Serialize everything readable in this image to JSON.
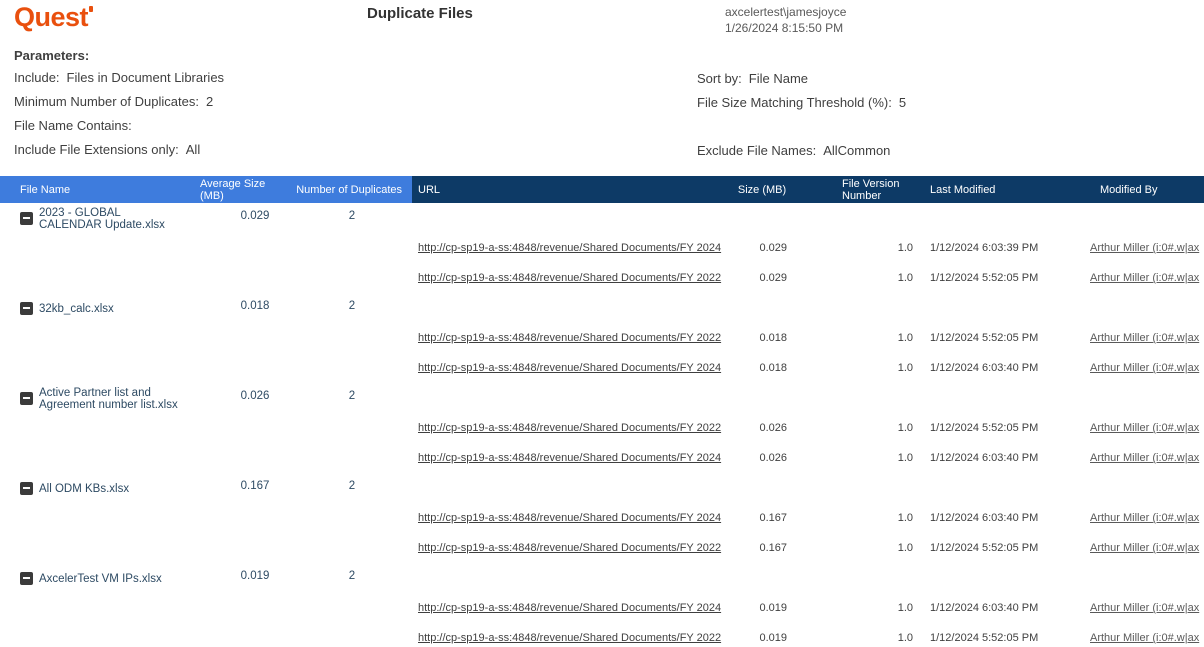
{
  "brand": {
    "logo_text": "Quest"
  },
  "header": {
    "title": "Duplicate Files",
    "user": "axcelertest\\jamesjoyce",
    "generated": "1/26/2024 8:15:50 PM"
  },
  "parameters": {
    "heading": "Parameters:",
    "left": [
      {
        "label": "Include:",
        "value": "Files in Document Libraries"
      },
      {
        "label": "Minimum Number of Duplicates:",
        "value": "2"
      },
      {
        "label": "File Name Contains:",
        "value": ""
      },
      {
        "label": "Include File Extensions only:",
        "value": "All"
      }
    ],
    "right": [
      {
        "label": "Sort by:",
        "value": "File Name"
      },
      {
        "label": "File Size Matching Threshold (%):",
        "value": "5"
      },
      {
        "label": "",
        "value": ""
      },
      {
        "label": "Exclude File Names:",
        "value": "AllCommon"
      }
    ]
  },
  "table": {
    "columns": {
      "file_name": "File Name",
      "avg_size": "Average Size (MB)",
      "duplicates": "Number of Duplicates",
      "url": "URL",
      "size": "Size (MB)",
      "version": "File Version Number",
      "modified": "Last Modified",
      "modified_by": "Modified By"
    },
    "groups": [
      {
        "file_name": "2023 - GLOBAL CALENDAR Update.xlsx",
        "avg_size": "0.029",
        "duplicates": "2",
        "rows": [
          {
            "url": "http://cp-sp19-a-ss:4848/revenue/Shared Documents/FY 2024",
            "size": "0.029",
            "version": "1.0",
            "modified": "1/12/2024 6:03:39 PM",
            "modified_by": "Arthur Miller (i:0#.w|ax"
          },
          {
            "url": "http://cp-sp19-a-ss:4848/revenue/Shared Documents/FY 2022",
            "size": "0.029",
            "version": "1.0",
            "modified": "1/12/2024 5:52:05 PM",
            "modified_by": "Arthur Miller (i:0#.w|ax"
          }
        ]
      },
      {
        "file_name": "32kb_calc.xlsx",
        "avg_size": "0.018",
        "duplicates": "2",
        "rows": [
          {
            "url": "http://cp-sp19-a-ss:4848/revenue/Shared Documents/FY 2022",
            "size": "0.018",
            "version": "1.0",
            "modified": "1/12/2024 5:52:05 PM",
            "modified_by": "Arthur Miller (i:0#.w|ax"
          },
          {
            "url": "http://cp-sp19-a-ss:4848/revenue/Shared Documents/FY 2024",
            "size": "0.018",
            "version": "1.0",
            "modified": "1/12/2024 6:03:40 PM",
            "modified_by": "Arthur Miller (i:0#.w|ax"
          }
        ]
      },
      {
        "file_name": "Active Partner list and Agreement number list.xlsx",
        "avg_size": "0.026",
        "duplicates": "2",
        "rows": [
          {
            "url": "http://cp-sp19-a-ss:4848/revenue/Shared Documents/FY 2022",
            "size": "0.026",
            "version": "1.0",
            "modified": "1/12/2024 5:52:05 PM",
            "modified_by": "Arthur Miller (i:0#.w|ax"
          },
          {
            "url": "http://cp-sp19-a-ss:4848/revenue/Shared Documents/FY 2024",
            "size": "0.026",
            "version": "1.0",
            "modified": "1/12/2024 6:03:40 PM",
            "modified_by": "Arthur Miller (i:0#.w|ax"
          }
        ]
      },
      {
        "file_name": "All ODM KBs.xlsx",
        "avg_size": "0.167",
        "duplicates": "2",
        "rows": [
          {
            "url": "http://cp-sp19-a-ss:4848/revenue/Shared Documents/FY 2024",
            "size": "0.167",
            "version": "1.0",
            "modified": "1/12/2024 6:03:40 PM",
            "modified_by": "Arthur Miller (i:0#.w|ax"
          },
          {
            "url": "http://cp-sp19-a-ss:4848/revenue/Shared Documents/FY 2022",
            "size": "0.167",
            "version": "1.0",
            "modified": "1/12/2024 5:52:05 PM",
            "modified_by": "Arthur Miller (i:0#.w|ax"
          }
        ]
      },
      {
        "file_name": "AxcelerTest VM IPs.xlsx",
        "avg_size": "0.019",
        "duplicates": "2",
        "rows": [
          {
            "url": "http://cp-sp19-a-ss:4848/revenue/Shared Documents/FY 2024",
            "size": "0.019",
            "version": "1.0",
            "modified": "1/12/2024 6:03:40 PM",
            "modified_by": "Arthur Miller (i:0#.w|ax"
          },
          {
            "url": "http://cp-sp19-a-ss:4848/revenue/Shared Documents/FY 2022",
            "size": "0.019",
            "version": "1.0",
            "modified": "1/12/2024 5:52:05 PM",
            "modified_by": "Arthur Miller (i:0#.w|ax"
          }
        ]
      }
    ]
  },
  "colors": {
    "accent_orange": "#e9500e",
    "header_light_blue": "#3e7cdd",
    "header_dark_navy": "#0d3a66"
  }
}
